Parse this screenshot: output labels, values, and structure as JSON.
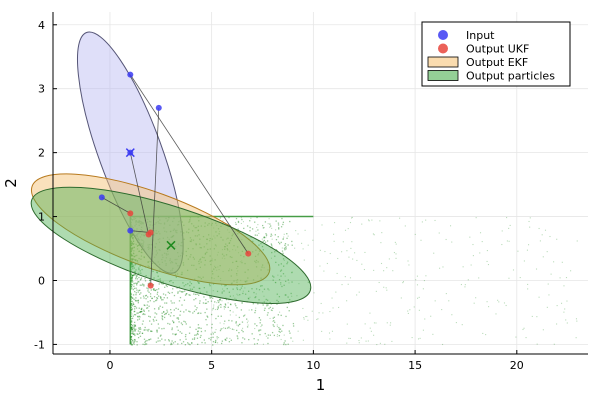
{
  "chart_data": {
    "type": "scatter",
    "xlabel": "1",
    "ylabel": "2",
    "xlim": [
      -2.8,
      23.5
    ],
    "ylim": [
      -1.15,
      4.2
    ],
    "x_ticks": [
      0,
      5,
      10,
      15,
      20
    ],
    "y_ticks": [
      -1,
      0,
      1,
      2,
      3,
      4
    ],
    "x_tick_labels": [
      "0",
      "5",
      "10",
      "15",
      "20"
    ],
    "y_tick_labels": [
      "-1",
      "0",
      "1",
      "2",
      "3",
      "4"
    ],
    "grid": true,
    "legend_position": "top-right",
    "colors": {
      "input": "#3b3bf2",
      "output_ukf": "#e8453c",
      "ekf_fill": "#f6c47a",
      "ekf_edge": "#b87a1e",
      "particles": "#1e8a1e",
      "particles_fill": "#4caf50",
      "input_ellipse_fill": "#b8b8f2",
      "connector": "#333333"
    },
    "legend": [
      {
        "label": "Input",
        "kind": "marker",
        "color": "#3b3bf2"
      },
      {
        "label": "Output UKF",
        "kind": "marker",
        "color": "#e8453c"
      },
      {
        "label": "Output EKF",
        "kind": "patch",
        "color": "#f6c47a"
      },
      {
        "label": "Output particles",
        "kind": "patch",
        "color": "#4caf50"
      }
    ],
    "input_points": [
      {
        "x": 1.0,
        "y": 3.22
      },
      {
        "x": 2.4,
        "y": 2.7
      },
      {
        "x": 1.0,
        "y": 2.0
      },
      {
        "x": -0.4,
        "y": 1.3
      },
      {
        "x": 1.0,
        "y": 0.78
      }
    ],
    "input_mean": {
      "x": 1.0,
      "y": 2.0
    },
    "output_ukf_points": [
      {
        "x": 6.8,
        "y": 0.42
      },
      {
        "x": 2.0,
        "y": -0.08
      },
      {
        "x": 1.9,
        "y": 0.72
      },
      {
        "x": 1.0,
        "y": 1.05
      },
      {
        "x": 2.0,
        "y": 0.75
      }
    ],
    "input_ellipse": {
      "cx": 1.0,
      "cy": 2.0,
      "rx_data": 1.55,
      "ry_data": 2.0,
      "rotation_deg": -20
    },
    "ekf_ellipse": {
      "cx": 2.0,
      "cy": 0.8,
      "rx_data": 6.2,
      "ry_data": 0.58,
      "rotation_deg": 20
    },
    "particle_ellipse": {
      "cx": 3.0,
      "cy": 0.55,
      "rx_data": 7.2,
      "ry_data": 0.6,
      "rotation_deg": 18
    },
    "particle_mean": {
      "x": 3.0,
      "y": 0.55
    },
    "particle_region": {
      "x_min": 1.0,
      "x_max": 23.0,
      "y_min": -1.0,
      "y_max": 1.0
    }
  }
}
